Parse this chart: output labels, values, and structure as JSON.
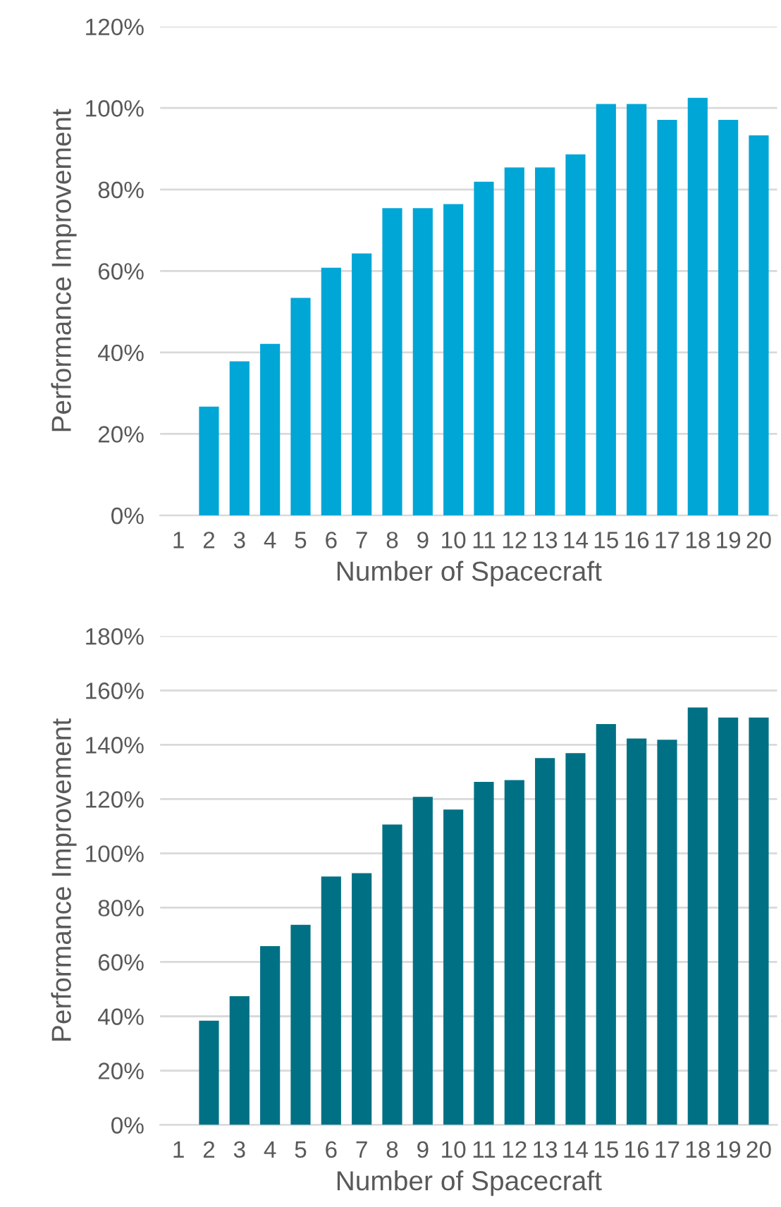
{
  "chart_data": [
    {
      "type": "bar",
      "xlabel": "Number of Spacecraft",
      "ylabel": "Performance Improvement",
      "categories": [
        "1",
        "2",
        "3",
        "4",
        "5",
        "6",
        "7",
        "8",
        "9",
        "10",
        "11",
        "12",
        "13",
        "14",
        "15",
        "16",
        "17",
        "18",
        "19",
        "20"
      ],
      "color": "#00a6d6",
      "values": [
        null,
        26.7,
        37.8,
        42.1,
        53.4,
        60.8,
        64.3,
        75.4,
        75.4,
        76.4,
        81.9,
        85.4,
        85.4,
        88.6,
        101.0,
        101.0,
        97.1,
        102.5,
        97.1,
        93.3
      ],
      "ylim": [
        0,
        120
      ],
      "yticks": [
        {
          "value": 0,
          "label": "0%"
        },
        {
          "value": 20,
          "label": "20%"
        },
        {
          "value": 40,
          "label": "40%"
        },
        {
          "value": 60,
          "label": "60%"
        },
        {
          "value": 80,
          "label": "80%"
        },
        {
          "value": 100,
          "label": "100%"
        },
        {
          "value": 120,
          "label": "120%"
        }
      ],
      "grid": "y",
      "legend": false
    },
    {
      "type": "bar",
      "xlabel": "Number of Spacecraft",
      "ylabel": "Performance Improvement",
      "categories": [
        "1",
        "2",
        "3",
        "4",
        "5",
        "6",
        "7",
        "8",
        "9",
        "10",
        "11",
        "12",
        "13",
        "14",
        "15",
        "16",
        "17",
        "18",
        "19",
        "20"
      ],
      "color": "#007185",
      "values": [
        null,
        38.4,
        47.4,
        65.8,
        73.7,
        91.5,
        92.7,
        110.6,
        120.8,
        116.1,
        126.3,
        127.0,
        135.1,
        136.9,
        147.6,
        142.3,
        141.8,
        153.7,
        150.0,
        150.0
      ],
      "ylim": [
        0,
        180
      ],
      "yticks": [
        {
          "value": 0,
          "label": "0%"
        },
        {
          "value": 20,
          "label": "20%"
        },
        {
          "value": 40,
          "label": "40%"
        },
        {
          "value": 60,
          "label": "60%"
        },
        {
          "value": 80,
          "label": "80%"
        },
        {
          "value": 100,
          "label": "100%"
        },
        {
          "value": 120,
          "label": "120%"
        },
        {
          "value": 140,
          "label": "140%"
        },
        {
          "value": 160,
          "label": "160%"
        },
        {
          "value": 180,
          "label": "180%"
        }
      ],
      "grid": "y",
      "legend": false
    }
  ]
}
